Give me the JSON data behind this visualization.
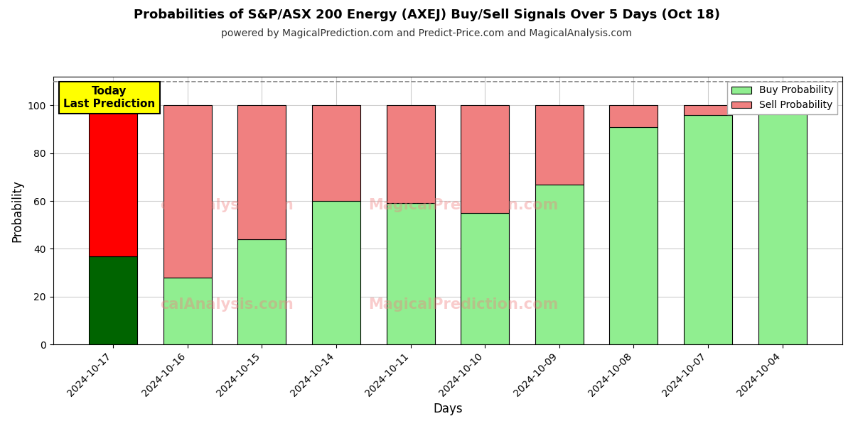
{
  "title": "Probabilities of S&P/ASX 200 Energy (AXEJ) Buy/Sell Signals Over 5 Days (Oct 18)",
  "subtitle": "powered by MagicalPrediction.com and Predict-Price.com and MagicalAnalysis.com",
  "xlabel": "Days",
  "ylabel": "Probability",
  "dates": [
    "2024-10-17",
    "2024-10-16",
    "2024-10-15",
    "2024-10-14",
    "2024-10-11",
    "2024-10-10",
    "2024-10-09",
    "2024-10-08",
    "2024-10-07",
    "2024-10-04"
  ],
  "buy_values": [
    37,
    28,
    44,
    60,
    59,
    55,
    67,
    91,
    96,
    100
  ],
  "sell_values": [
    63,
    72,
    56,
    40,
    41,
    45,
    33,
    9,
    4,
    0
  ],
  "today_buy_color": "#006400",
  "today_sell_color": "#ff0000",
  "buy_color": "#90EE90",
  "sell_color": "#F08080",
  "bar_edge_color": "#000000",
  "ylim_max": 112,
  "yticks": [
    0,
    20,
    40,
    60,
    80,
    100
  ],
  "dashed_line_y": 110,
  "watermark_texts": [
    "calAnalysis.com",
    "MagicalPrediction.com",
    "calAnalysis.com",
    "MagicalPrediction.com"
  ],
  "annotation_text": "Today\nLast Prediction",
  "annotation_bg": "#ffff00",
  "grid_color": "#cccccc",
  "fig_width": 12,
  "fig_height": 6
}
